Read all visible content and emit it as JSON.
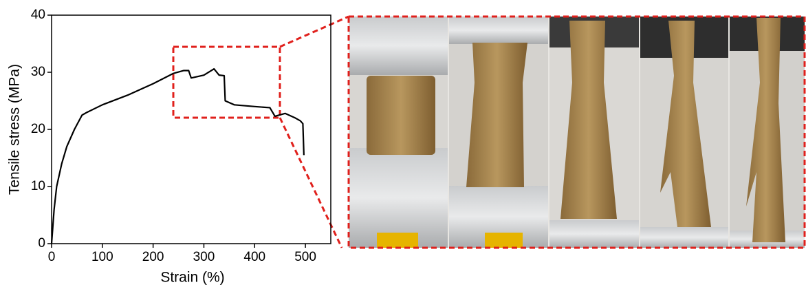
{
  "chart_data": {
    "type": "line",
    "x_label": "Strain (%)",
    "y_label": "Tensile stress (MPa)",
    "xlim": [
      0,
      550
    ],
    "ylim": [
      0,
      40
    ],
    "xticks": [
      0,
      100,
      200,
      300,
      400,
      500
    ],
    "yticks": [
      0,
      10,
      20,
      30,
      40
    ],
    "series": [
      {
        "color": "#000000",
        "x": [
          0,
          5,
          10,
          20,
          30,
          45,
          60,
          70,
          100,
          150,
          200,
          240,
          260,
          270,
          275,
          300,
          320,
          330,
          340,
          342,
          360,
          400,
          430,
          440,
          460,
          480,
          490,
          495,
          497
        ],
        "values": [
          0,
          6,
          10,
          14,
          17,
          20,
          22.5,
          23,
          24.3,
          26,
          28,
          29.8,
          30.3,
          30.3,
          29,
          29.5,
          30.6,
          29.5,
          29.4,
          25,
          24.3,
          24,
          23.8,
          22.3,
          22.8,
          22,
          21.5,
          21,
          15.5
        ]
      }
    ]
  }
}
